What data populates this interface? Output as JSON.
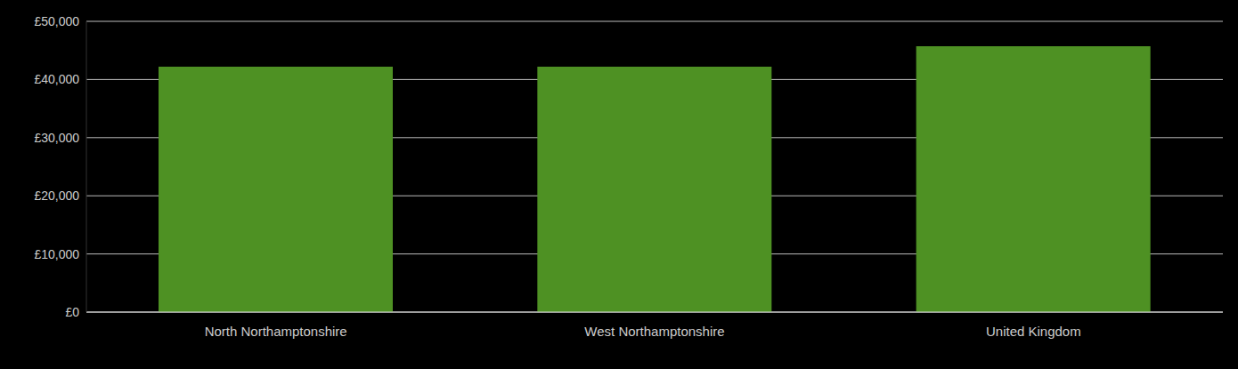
{
  "chart_data": {
    "type": "bar",
    "categories": [
      "North Northamptonshire",
      "West Northamptonshire",
      "United Kingdom"
    ],
    "values": [
      42200,
      42200,
      45700
    ],
    "color": "#4e9123",
    "ylim": [
      0,
      50000
    ],
    "yticks": [
      {
        "value": 0,
        "label": "£0"
      },
      {
        "value": 10000,
        "label": "£10,000"
      },
      {
        "value": 20000,
        "label": "£20,000"
      },
      {
        "value": 30000,
        "label": "£30,000"
      },
      {
        "value": 40000,
        "label": "£40,000"
      },
      {
        "value": 50000,
        "label": "£50,000"
      }
    ],
    "grid": true
  }
}
